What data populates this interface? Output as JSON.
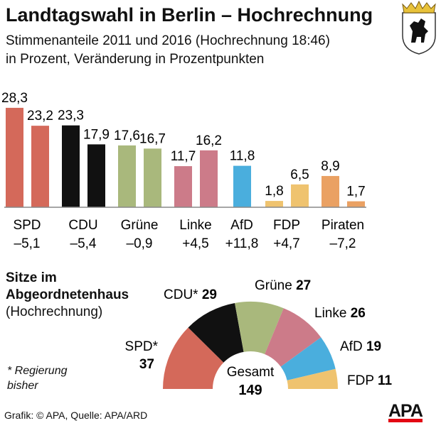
{
  "title": "Landtagswahl in Berlin – Hochrechnung",
  "subtitle1": "Stimmenanteile 2011 und 2016 (Hochrechnung 18:46)",
  "subtitle2": "in Prozent, Veränderung in Prozentpunkten",
  "chart_data": [
    {
      "type": "bar",
      "categories": [
        "SPD",
        "CDU",
        "Grüne",
        "Linke",
        "AfD",
        "FDP",
        "Piraten"
      ],
      "changes": [
        "–5,1",
        "–5,4",
        "–0,9",
        "+4,5",
        "+11,8",
        "+4,7",
        "–7,2"
      ],
      "series": [
        {
          "values": [
            28.3,
            23.3,
            17.6,
            11.7,
            null,
            1.8,
            8.9
          ],
          "labels": [
            "28,3",
            "23,3",
            "17,6",
            "11,7",
            "",
            "1,8",
            "8,9"
          ]
        },
        {
          "values": [
            23.2,
            17.9,
            16.7,
            16.2,
            11.8,
            6.5,
            1.7
          ],
          "labels": [
            "23,2",
            "17,9",
            "16,7",
            "16,2",
            "11,8",
            "6,5",
            "1,7"
          ]
        }
      ],
      "colors": [
        "#d4695a",
        "#111111",
        "#a9b87c",
        "#cc7b89",
        "#4aaedd",
        "#efc36f",
        "#eaa163"
      ]
    },
    {
      "type": "pie",
      "title": "Sitze im Abgeordnetenhaus",
      "subtitle": "(Hochrechnung)",
      "slices": [
        {
          "name": "SPD*",
          "value": 37,
          "color": "#d4695a"
        },
        {
          "name": "CDU*",
          "value": 29,
          "color": "#111111"
        },
        {
          "name": "Grüne",
          "value": 27,
          "color": "#a9b87c"
        },
        {
          "name": "Linke",
          "value": 26,
          "color": "#cc7b89"
        },
        {
          "name": "AfD",
          "value": 19,
          "color": "#4aaedd"
        },
        {
          "name": "FDP",
          "value": 11,
          "color": "#efc36f"
        }
      ],
      "total_label": "Gesamt",
      "total": "149"
    }
  ],
  "note": "* Regierung bisher",
  "source": "Grafik: © APA, Quelle: APA/ARD",
  "logo": "APA"
}
